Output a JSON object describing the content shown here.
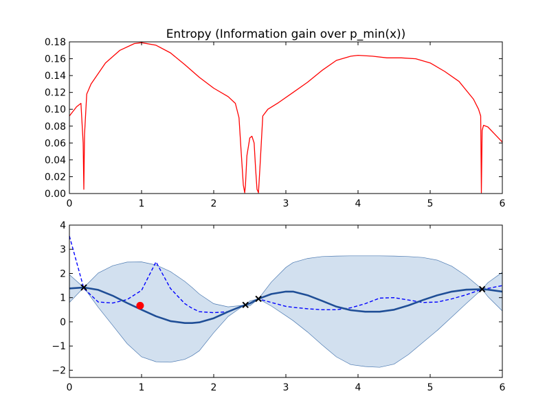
{
  "chart_data": [
    {
      "type": "line",
      "title": "Entropy (Information gain over p_min(x))",
      "xlabel": "",
      "ylabel": "",
      "xlim": [
        0,
        6
      ],
      "ylim": [
        0,
        0.18
      ],
      "xticks": [
        "0",
        "1",
        "2",
        "3",
        "4",
        "5",
        "6"
      ],
      "yticks": [
        "0.00",
        "0.02",
        "0.04",
        "0.06",
        "0.08",
        "0.10",
        "0.12",
        "0.14",
        "0.16",
        "0.18"
      ],
      "grid": false,
      "line_color": "#ff0000",
      "series": [
        {
          "x": [
            0,
            0.1,
            0.16,
            0.19,
            0.2,
            0.21,
            0.24,
            0.3,
            0.5,
            0.7,
            0.9,
            1.0,
            1.2,
            1.4,
            1.6,
            1.8,
            2.0,
            2.2,
            2.3,
            2.35,
            2.38,
            2.41,
            2.43,
            2.44,
            2.46,
            2.5,
            2.53,
            2.56,
            2.58,
            2.6,
            2.62,
            2.64,
            2.68,
            2.75,
            2.9,
            3.1,
            3.3,
            3.5,
            3.7,
            3.9,
            4.0,
            4.2,
            4.4,
            4.6,
            4.8,
            5.0,
            5.2,
            5.4,
            5.6,
            5.67,
            5.7,
            5.71,
            5.72,
            5.74,
            5.8,
            5.9,
            6.0
          ],
          "y": [
            0.092,
            0.103,
            0.107,
            0.06,
            0.005,
            0.07,
            0.118,
            0.13,
            0.155,
            0.17,
            0.178,
            0.179,
            0.176,
            0.167,
            0.153,
            0.138,
            0.125,
            0.115,
            0.107,
            0.09,
            0.05,
            0.01,
            0.001,
            0.01,
            0.045,
            0.066,
            0.068,
            0.06,
            0.03,
            0.005,
            0.001,
            0.03,
            0.092,
            0.1,
            0.108,
            0.12,
            0.132,
            0.146,
            0.158,
            0.163,
            0.164,
            0.163,
            0.161,
            0.161,
            0.16,
            0.155,
            0.145,
            0.133,
            0.112,
            0.1,
            0.092,
            0.001,
            0.075,
            0.081,
            0.079,
            0.07,
            0.061
          ]
        }
      ]
    },
    {
      "type": "line",
      "title": "",
      "xlabel": "",
      "ylabel": "",
      "xlim": [
        0,
        6
      ],
      "ylim": [
        -2.3,
        4
      ],
      "xticks": [
        "0",
        "1",
        "2",
        "3",
        "4",
        "5",
        "6"
      ],
      "yticks": [
        "−2",
        "−1",
        "0",
        "1",
        "2",
        "3",
        "4"
      ],
      "ytick_values": [
        -2,
        -1,
        0,
        1,
        2,
        3,
        4
      ],
      "grid": false,
      "colors": {
        "mean": "#1f4e96",
        "band_fill": "#d2e0ef",
        "band_edge": "#4a78b0",
        "dashed": "#0000ff",
        "obs": "#000000",
        "next": "#ff0000"
      },
      "x": [
        0,
        0.2,
        0.4,
        0.6,
        0.8,
        1.0,
        1.2,
        1.4,
        1.6,
        1.7,
        1.8,
        2.0,
        2.2,
        2.4,
        2.44,
        2.5,
        2.62,
        2.8,
        3.0,
        3.1,
        3.3,
        3.5,
        3.7,
        3.9,
        4.1,
        4.3,
        4.5,
        4.7,
        4.9,
        5.1,
        5.3,
        5.5,
        5.72,
        5.8,
        6.0
      ],
      "mean": [
        1.38,
        1.42,
        1.32,
        1.08,
        0.78,
        0.5,
        0.23,
        0.03,
        -0.05,
        -0.05,
        -0.02,
        0.15,
        0.42,
        0.66,
        0.7,
        0.76,
        0.95,
        1.15,
        1.25,
        1.25,
        1.1,
        0.87,
        0.63,
        0.48,
        0.42,
        0.42,
        0.5,
        0.68,
        0.9,
        1.1,
        1.25,
        1.33,
        1.35,
        1.33,
        1.25
      ],
      "upper": [
        1.95,
        1.42,
        2.02,
        2.32,
        2.47,
        2.48,
        2.35,
        2.08,
        1.67,
        1.42,
        1.15,
        0.75,
        0.62,
        0.68,
        0.7,
        0.86,
        0.95,
        1.65,
        2.25,
        2.45,
        2.62,
        2.7,
        2.72,
        2.73,
        2.73,
        2.73,
        2.72,
        2.7,
        2.66,
        2.55,
        2.3,
        1.9,
        1.35,
        1.62,
        2.05
      ],
      "lower": [
        0.8,
        1.42,
        0.6,
        -0.15,
        -0.9,
        -1.45,
        -1.65,
        -1.67,
        -1.55,
        -1.4,
        -1.2,
        -0.45,
        0.22,
        0.64,
        0.7,
        0.66,
        0.95,
        0.65,
        0.25,
        0.05,
        -0.42,
        -0.95,
        -1.45,
        -1.77,
        -1.85,
        -1.88,
        -1.75,
        -1.35,
        -0.85,
        -0.35,
        0.2,
        0.76,
        1.35,
        1.04,
        0.45
      ],
      "dashed": [
        3.55,
        1.38,
        0.82,
        0.78,
        0.92,
        1.3,
        2.48,
        1.38,
        0.75,
        0.56,
        0.42,
        0.38,
        0.42,
        0.66,
        0.7,
        0.76,
        0.95,
        0.8,
        0.64,
        0.6,
        0.54,
        0.5,
        0.5,
        0.58,
        0.75,
        0.98,
        1.0,
        0.9,
        0.8,
        0.82,
        0.95,
        1.12,
        1.35,
        1.38,
        1.5
      ],
      "observations": [
        {
          "x": 0.2,
          "y": 1.42
        },
        {
          "x": 2.44,
          "y": 0.7
        },
        {
          "x": 2.62,
          "y": 0.95
        },
        {
          "x": 5.72,
          "y": 1.35
        }
      ],
      "next_point": {
        "x": 0.98,
        "y": 0.67
      }
    }
  ]
}
